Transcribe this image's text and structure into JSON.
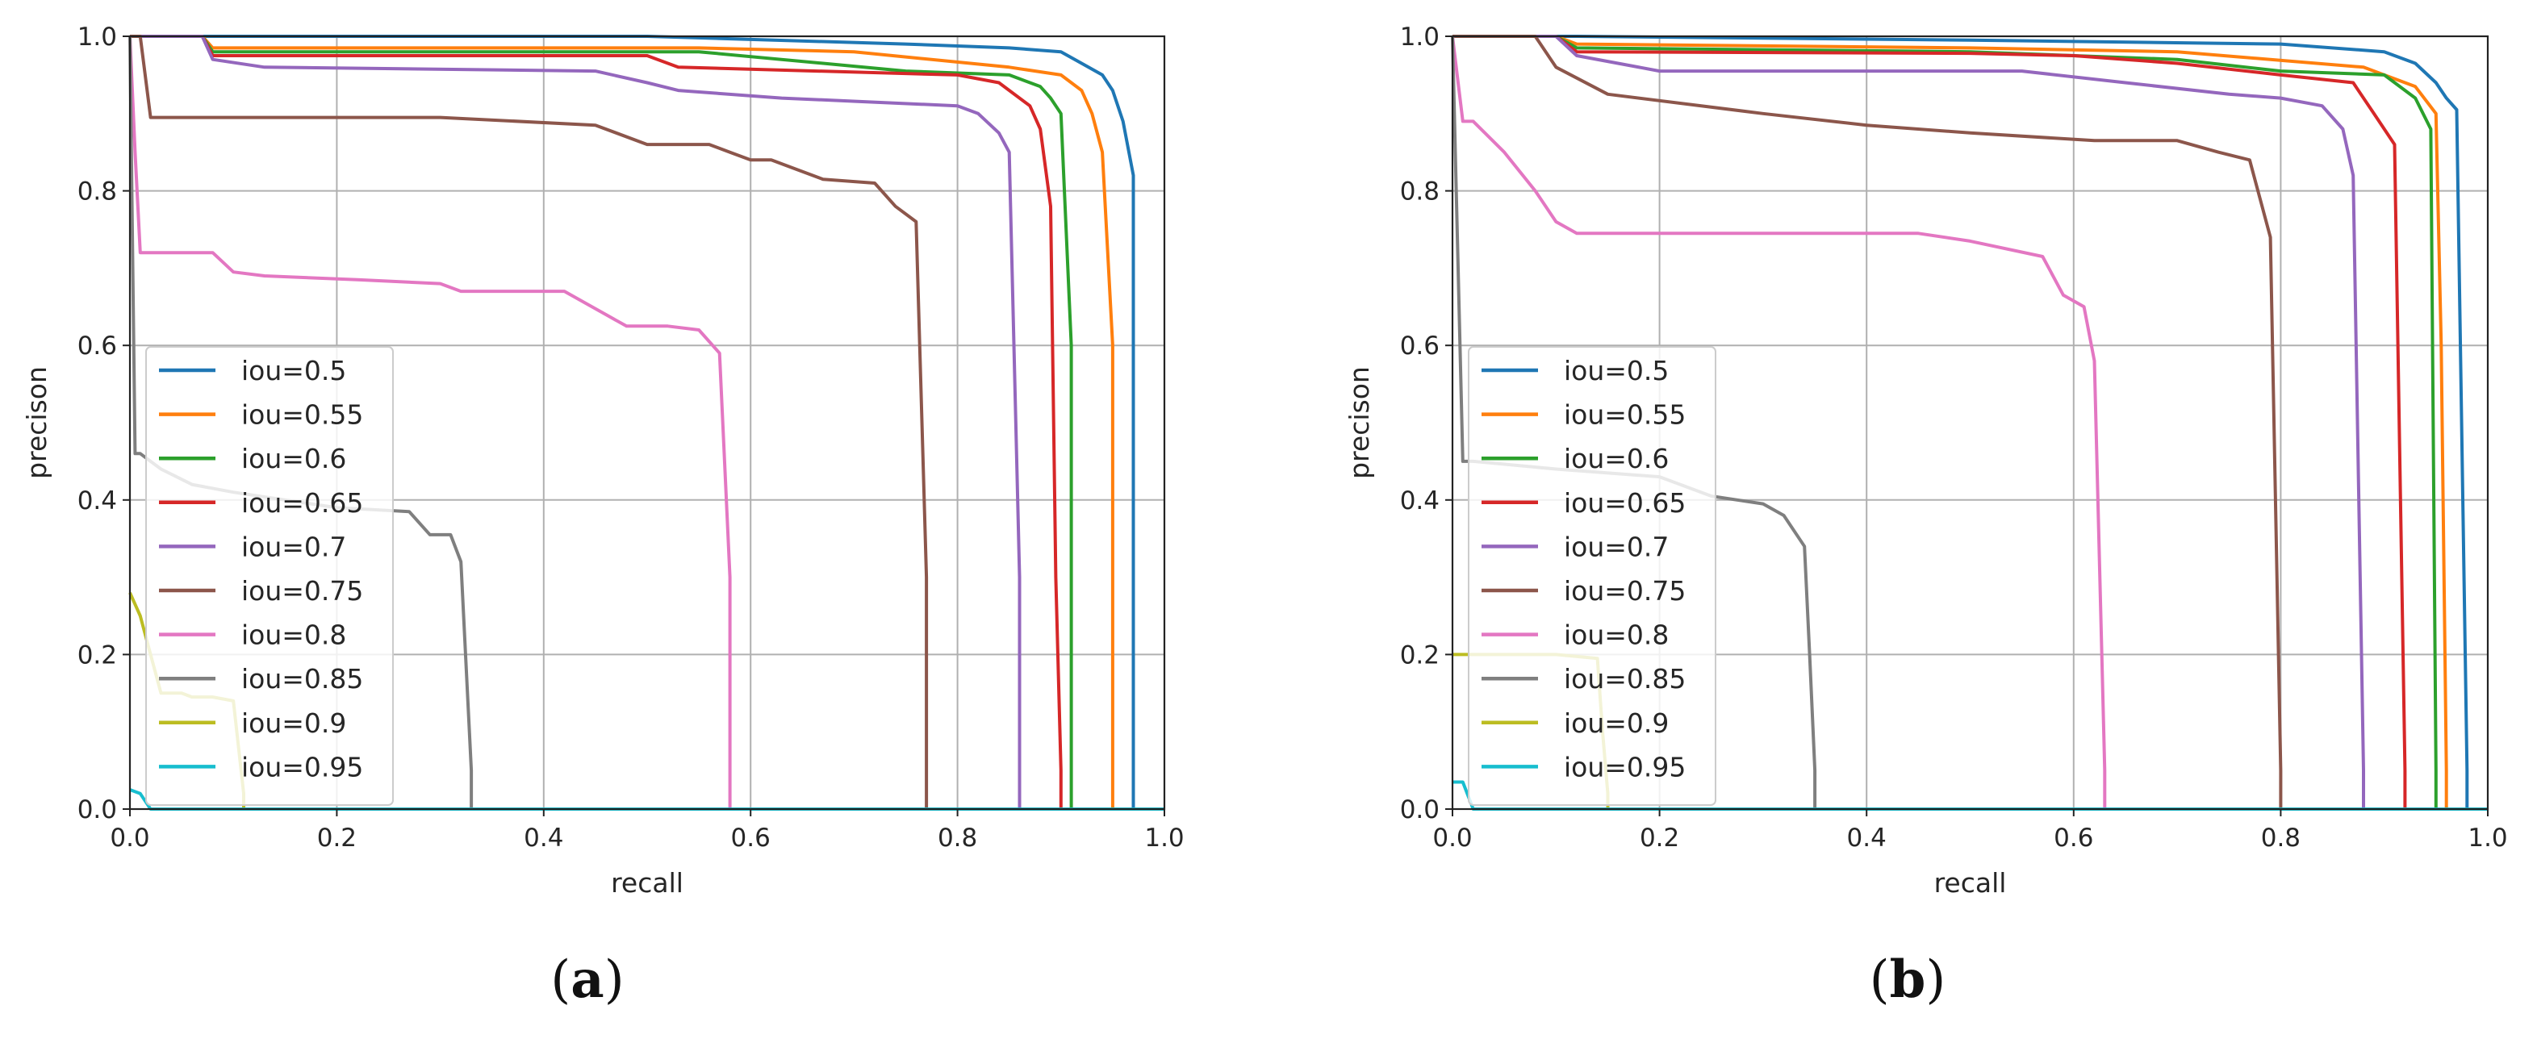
{
  "figure": {
    "caption_parts": {
      "open": "(",
      "close": ")"
    }
  },
  "chart_data": [
    {
      "panel": "a",
      "caption_letter": "a",
      "type": "line",
      "title": "",
      "xlabel": "recall",
      "ylabel": "precison",
      "xlim": [
        0.0,
        1.0
      ],
      "ylim": [
        0.0,
        1.0
      ],
      "xticks": [
        "0.0",
        "0.2",
        "0.4",
        "0.6",
        "0.8",
        "1.0"
      ],
      "yticks": [
        "0.0",
        "0.2",
        "0.4",
        "0.6",
        "0.8",
        "1.0"
      ],
      "grid": true,
      "legend_position": "center-left",
      "series": [
        {
          "name": "iou=0.5",
          "color": "#1f77b4",
          "x": [
            0,
            0.5,
            0.75,
            0.85,
            0.9,
            0.92,
            0.94,
            0.95,
            0.96,
            0.97,
            0.97,
            1.0
          ],
          "y": [
            1.0,
            1.0,
            0.99,
            0.985,
            0.98,
            0.965,
            0.95,
            0.93,
            0.89,
            0.82,
            0.0,
            0.0
          ]
        },
        {
          "name": "iou=0.55",
          "color": "#ff7f0e",
          "x": [
            0,
            0.07,
            0.08,
            0.55,
            0.7,
            0.85,
            0.9,
            0.92,
            0.93,
            0.94,
            0.95,
            0.95,
            1.0
          ],
          "y": [
            1.0,
            1.0,
            0.985,
            0.985,
            0.98,
            0.96,
            0.95,
            0.93,
            0.9,
            0.85,
            0.6,
            0.0,
            0.0
          ]
        },
        {
          "name": "iou=0.6",
          "color": "#2ca02c",
          "x": [
            0,
            0.07,
            0.08,
            0.55,
            0.75,
            0.85,
            0.88,
            0.89,
            0.9,
            0.91,
            0.91,
            1.0
          ],
          "y": [
            1.0,
            1.0,
            0.98,
            0.98,
            0.955,
            0.95,
            0.935,
            0.92,
            0.9,
            0.6,
            0.0,
            0.0
          ]
        },
        {
          "name": "iou=0.65",
          "color": "#d62728",
          "x": [
            0,
            0.07,
            0.08,
            0.5,
            0.53,
            0.8,
            0.84,
            0.87,
            0.88,
            0.89,
            0.895,
            0.9,
            0.9,
            1.0
          ],
          "y": [
            1.0,
            1.0,
            0.975,
            0.975,
            0.96,
            0.95,
            0.94,
            0.91,
            0.88,
            0.78,
            0.3,
            0.05,
            0.0,
            0.0
          ]
        },
        {
          "name": "iou=0.7",
          "color": "#9467bd",
          "x": [
            0,
            0.07,
            0.08,
            0.13,
            0.45,
            0.5,
            0.53,
            0.63,
            0.8,
            0.82,
            0.84,
            0.85,
            0.86,
            0.86,
            1.0
          ],
          "y": [
            1.0,
            1.0,
            0.97,
            0.96,
            0.955,
            0.94,
            0.93,
            0.92,
            0.91,
            0.9,
            0.875,
            0.85,
            0.3,
            0.0,
            0.0
          ]
        },
        {
          "name": "iou=0.75",
          "color": "#8c564b",
          "x": [
            0,
            0.01,
            0.02,
            0.3,
            0.45,
            0.5,
            0.56,
            0.58,
            0.6,
            0.62,
            0.64,
            0.67,
            0.72,
            0.74,
            0.76,
            0.77,
            0.77,
            1.0
          ],
          "y": [
            1.0,
            1.0,
            0.895,
            0.895,
            0.885,
            0.86,
            0.86,
            0.85,
            0.84,
            0.84,
            0.83,
            0.815,
            0.81,
            0.78,
            0.76,
            0.3,
            0.0,
            0.0
          ]
        },
        {
          "name": "iou=0.8",
          "color": "#e377c2",
          "x": [
            0,
            0.005,
            0.01,
            0.08,
            0.1,
            0.13,
            0.22,
            0.3,
            0.32,
            0.42,
            0.46,
            0.48,
            0.52,
            0.55,
            0.57,
            0.58,
            0.58,
            1.0
          ],
          "y": [
            1.0,
            0.85,
            0.72,
            0.72,
            0.695,
            0.69,
            0.685,
            0.68,
            0.67,
            0.67,
            0.64,
            0.625,
            0.625,
            0.62,
            0.59,
            0.3,
            0.0,
            0.0
          ]
        },
        {
          "name": "iou=0.85",
          "color": "#7f7f7f",
          "x": [
            0,
            0.005,
            0.01,
            0.03,
            0.06,
            0.1,
            0.2,
            0.27,
            0.29,
            0.31,
            0.32,
            0.33,
            0.33,
            1.0
          ],
          "y": [
            1.0,
            0.46,
            0.46,
            0.44,
            0.42,
            0.41,
            0.39,
            0.385,
            0.355,
            0.355,
            0.32,
            0.05,
            0.0,
            0.0
          ]
        },
        {
          "name": "iou=0.9",
          "color": "#bcbd22",
          "x": [
            0,
            0.01,
            0.02,
            0.03,
            0.05,
            0.06,
            0.08,
            0.1,
            0.11,
            0.11,
            1.0
          ],
          "y": [
            0.28,
            0.25,
            0.2,
            0.15,
            0.15,
            0.145,
            0.145,
            0.14,
            0.02,
            0.0,
            0.0
          ]
        },
        {
          "name": "iou=0.95",
          "color": "#17becf",
          "x": [
            0,
            0.01,
            0.02,
            1.0
          ],
          "y": [
            0.025,
            0.02,
            0.0,
            0.0
          ]
        }
      ]
    },
    {
      "panel": "b",
      "caption_letter": "b",
      "type": "line",
      "title": "",
      "xlabel": "recall",
      "ylabel": "precison",
      "xlim": [
        0.0,
        1.0
      ],
      "ylim": [
        0.0,
        1.0
      ],
      "xticks": [
        "0.0",
        "0.2",
        "0.4",
        "0.6",
        "0.8",
        "1.0"
      ],
      "yticks": [
        "0.0",
        "0.2",
        "0.4",
        "0.6",
        "0.8",
        "1.0"
      ],
      "grid": true,
      "legend_position": "center-left",
      "series": [
        {
          "name": "iou=0.5",
          "color": "#1f77b4",
          "x": [
            0,
            0.12,
            0.5,
            0.8,
            0.9,
            0.93,
            0.95,
            0.96,
            0.97,
            0.98,
            0.98,
            1.0
          ],
          "y": [
            1.0,
            1.0,
            0.995,
            0.99,
            0.98,
            0.965,
            0.94,
            0.92,
            0.905,
            0.05,
            0.0,
            0.0
          ]
        },
        {
          "name": "iou=0.55",
          "color": "#ff7f0e",
          "x": [
            0,
            0.1,
            0.12,
            0.5,
            0.7,
            0.88,
            0.93,
            0.95,
            0.955,
            0.96,
            0.96,
            1.0
          ],
          "y": [
            1.0,
            1.0,
            0.99,
            0.985,
            0.98,
            0.96,
            0.935,
            0.9,
            0.6,
            0.05,
            0.0,
            0.0
          ]
        },
        {
          "name": "iou=0.6",
          "color": "#2ca02c",
          "x": [
            0,
            0.1,
            0.12,
            0.5,
            0.7,
            0.8,
            0.9,
            0.93,
            0.945,
            0.95,
            0.95,
            1.0
          ],
          "y": [
            1.0,
            1.0,
            0.985,
            0.98,
            0.97,
            0.955,
            0.95,
            0.92,
            0.88,
            0.05,
            0.0,
            0.0
          ]
        },
        {
          "name": "iou=0.65",
          "color": "#d62728",
          "x": [
            0,
            0.1,
            0.12,
            0.5,
            0.6,
            0.7,
            0.8,
            0.87,
            0.89,
            0.91,
            0.92,
            0.92,
            1.0
          ],
          "y": [
            1.0,
            1.0,
            0.98,
            0.978,
            0.975,
            0.965,
            0.95,
            0.94,
            0.9,
            0.86,
            0.05,
            0.0,
            0.0
          ]
        },
        {
          "name": "iou=0.7",
          "color": "#9467bd",
          "x": [
            0,
            0.1,
            0.12,
            0.2,
            0.55,
            0.65,
            0.75,
            0.8,
            0.84,
            0.86,
            0.87,
            0.88,
            0.88,
            1.0
          ],
          "y": [
            1.0,
            1.0,
            0.975,
            0.955,
            0.955,
            0.94,
            0.925,
            0.92,
            0.91,
            0.88,
            0.82,
            0.05,
            0.0,
            0.0
          ]
        },
        {
          "name": "iou=0.75",
          "color": "#8c564b",
          "x": [
            0,
            0.08,
            0.1,
            0.15,
            0.3,
            0.4,
            0.5,
            0.62,
            0.7,
            0.74,
            0.77,
            0.79,
            0.8,
            0.8,
            1.0
          ],
          "y": [
            1.0,
            1.0,
            0.96,
            0.925,
            0.9,
            0.885,
            0.875,
            0.865,
            0.865,
            0.85,
            0.84,
            0.74,
            0.05,
            0.0,
            0.0
          ]
        },
        {
          "name": "iou=0.8",
          "color": "#e377c2",
          "x": [
            0,
            0.01,
            0.02,
            0.05,
            0.08,
            0.1,
            0.12,
            0.2,
            0.45,
            0.5,
            0.57,
            0.59,
            0.61,
            0.62,
            0.63,
            0.63,
            1.0
          ],
          "y": [
            1.0,
            0.89,
            0.89,
            0.85,
            0.8,
            0.76,
            0.745,
            0.745,
            0.745,
            0.735,
            0.715,
            0.665,
            0.65,
            0.58,
            0.05,
            0.0,
            0.0
          ]
        },
        {
          "name": "iou=0.85",
          "color": "#7f7f7f",
          "x": [
            0,
            0.01,
            0.02,
            0.1,
            0.2,
            0.25,
            0.3,
            0.32,
            0.34,
            0.345,
            0.35,
            0.35,
            1.0
          ],
          "y": [
            1.0,
            0.45,
            0.45,
            0.44,
            0.43,
            0.405,
            0.395,
            0.38,
            0.34,
            0.2,
            0.05,
            0.0,
            0.0
          ]
        },
        {
          "name": "iou=0.9",
          "color": "#bcbd22",
          "x": [
            0,
            0.02,
            0.1,
            0.14,
            0.145,
            0.15,
            0.15,
            1.0
          ],
          "y": [
            0.2,
            0.2,
            0.2,
            0.195,
            0.1,
            0.02,
            0.0,
            0.0
          ]
        },
        {
          "name": "iou=0.95",
          "color": "#17becf",
          "x": [
            0,
            0.01,
            0.02,
            1.0
          ],
          "y": [
            0.035,
            0.035,
            0.0,
            0.0
          ]
        }
      ]
    }
  ]
}
